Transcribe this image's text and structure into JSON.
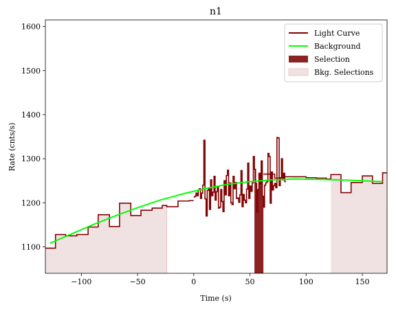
{
  "chart_data": {
    "type": "line",
    "title": "n1",
    "xlabel": "Time (s)",
    "ylabel": "Rate (cnts/s)",
    "xlim": [
      -132,
      172
    ],
    "ylim": [
      1040,
      1615
    ],
    "xticks": [
      -100,
      -50,
      0,
      50,
      100,
      150
    ],
    "yticks": [
      1100,
      1200,
      1300,
      1400,
      1500,
      1600
    ],
    "tick_labels_x": [
      "−100",
      "−50",
      "0",
      "50",
      "100",
      "150"
    ],
    "tick_labels_y": [
      "1100",
      "1200",
      "1300",
      "1400",
      "1500",
      "1600"
    ],
    "legend": {
      "position": "top-right",
      "entries": [
        {
          "label": "Light Curve",
          "kind": "line",
          "color": "#800000"
        },
        {
          "label": "Background",
          "kind": "line",
          "color": "#00ff00"
        },
        {
          "label": "Selection",
          "kind": "patch",
          "color": "#8b2323"
        },
        {
          "label": "Bkg. Selections",
          "kind": "patch",
          "color": "#f0e2e2"
        }
      ]
    },
    "colors": {
      "light_curve": "#800000",
      "background": "#00ff00",
      "selection": "#8b2323",
      "bkg_selection": "#f0e2e2"
    },
    "light_curve_coarse": {
      "edges": [
        -132,
        -123,
        -114,
        -104,
        -94,
        -85,
        -75,
        -66,
        -56,
        -47,
        -37,
        -28,
        -24,
        -14,
        -4,
        0
      ],
      "values": [
        1097,
        1128,
        1125,
        1128,
        1145,
        1173,
        1146,
        1199,
        1171,
        1183,
        1188,
        1194,
        1191,
        1204,
        1205
      ]
    },
    "light_curve_fine": {
      "x_start": 0,
      "dx": 1.0,
      "values": [
        1213,
        1215,
        1222,
        1216,
        1229,
        1232,
        1210,
        1222,
        1240,
        1342,
        1209,
        1170,
        1228,
        1233,
        1185,
        1252,
        1216,
        1224,
        1260,
        1206,
        1225,
        1237,
        1188,
        1190,
        1230,
        1203,
        1180,
        1250,
        1218,
        1262,
        1274,
        1216,
        1245,
        1200,
        1196,
        1260,
        1232,
        1246,
        1210,
        1211,
        1201,
        1218,
        1273,
        1191,
        1219,
        1206,
        1200,
        1231,
        1290,
        1210,
        1238,
        1226,
        1245,
        1305,
        1276,
        1244,
        1179,
        1230,
        1267,
        1243,
        1295,
        1215,
        1190,
        1240,
        1245,
        1248,
        1312,
        1305,
        1199,
        1270,
        1229,
        1239,
        1244,
        1234,
        1348,
        1347,
        1239,
        1257,
        1300,
        1252,
        1267,
        1248
      ]
    },
    "light_curve_coarse_post": {
      "edges": [
        62,
        72,
        81,
        91,
        100,
        109,
        118,
        122,
        131,
        140,
        150,
        159,
        168,
        172
      ],
      "values": [
        1265,
        1256,
        1259,
        1259,
        1257,
        1256,
        1254,
        1264,
        1223,
        1246,
        1261,
        1244,
        1268
      ]
    },
    "background": {
      "x": [
        -128,
        -110,
        -90,
        -70,
        -50,
        -30,
        -10,
        10,
        30,
        50,
        70,
        90,
        110,
        130,
        150,
        168
      ],
      "y": [
        1108,
        1128,
        1150,
        1170,
        1189,
        1206,
        1220,
        1232,
        1242,
        1248,
        1252,
        1254,
        1253,
        1252,
        1250,
        1248
      ]
    },
    "selection": {
      "x0": 54,
      "x1": 62
    },
    "bkg_selections": [
      {
        "x0": -132,
        "x1": -24
      },
      {
        "x0": 122,
        "x1": 172
      }
    ]
  }
}
